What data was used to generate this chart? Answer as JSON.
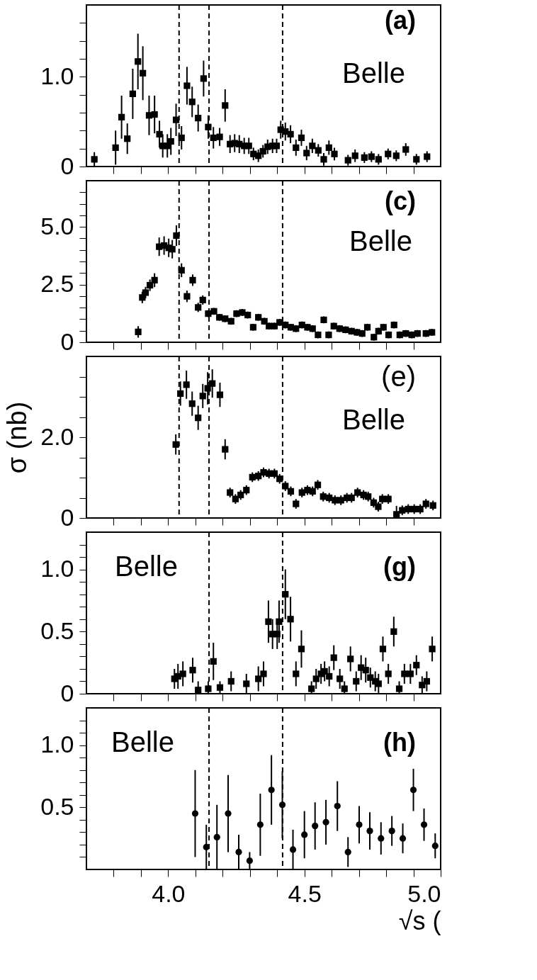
{
  "chart_data": [
    {
      "type": "scatter",
      "annotations": [
        "(a)",
        "Belle"
      ],
      "marker": "square",
      "tick_labels": "y",
      "grid": false,
      "xlim": [
        3.7,
        5.0
      ],
      "xticks": [
        {
          "value": 3.8,
          "label": null
        },
        {
          "value": 3.9,
          "label": null
        },
        {
          "value": 4.0,
          "label": null
        },
        {
          "value": 4.1,
          "label": null
        },
        {
          "value": 4.2,
          "label": null
        },
        {
          "value": 4.3,
          "label": null
        },
        {
          "value": 4.4,
          "label": null
        },
        {
          "value": 4.5,
          "label": null
        },
        {
          "value": 4.6,
          "label": null
        },
        {
          "value": 4.7,
          "label": null
        },
        {
          "value": 4.8,
          "label": null
        },
        {
          "value": 4.9,
          "label": null
        }
      ],
      "ylim": [
        0,
        1.8
      ],
      "yticks": [
        0,
        {
          "value": 0.2,
          "label": null
        },
        {
          "value": 0.4,
          "label": null
        },
        {
          "value": 0.6,
          "label": null
        },
        {
          "value": 0.8,
          "label": null
        },
        {
          "value": 1,
          "label": "1.0"
        },
        {
          "value": 1.2,
          "label": null
        },
        {
          "value": 1.4,
          "label": null
        },
        {
          "value": 1.6,
          "label": null
        }
      ],
      "ref_lines": [
        {
          "axis": "x",
          "value": 4.04,
          "line_style": "dashed",
          "color": "#000000"
        },
        {
          "axis": "x",
          "value": 4.15,
          "line_style": "dashed",
          "color": "#000000"
        },
        {
          "axis": "x",
          "value": 4.42,
          "line_style": "dashed",
          "color": "#000000"
        }
      ],
      "series": [
        {
          "color": "#000000",
          "x": [
            3.729,
            3.807,
            3.829,
            3.85,
            3.87,
            3.889,
            3.907,
            3.93,
            3.95,
            3.968,
            3.98,
            3.997,
            4.01,
            4.029,
            4.049,
            4.069,
            4.088,
            4.11,
            4.13,
            4.147,
            4.166,
            4.189,
            4.209,
            4.227,
            4.244,
            4.261,
            4.279,
            4.296,
            4.313,
            4.331,
            4.348,
            4.365,
            4.383,
            4.398,
            4.413,
            4.43,
            4.449,
            4.469,
            4.489,
            4.508,
            4.529,
            4.551,
            4.571,
            4.59,
            4.61,
            4.66,
            4.686,
            4.72,
            4.746,
            4.772,
            4.807,
            4.837,
            4.872,
            4.911,
            4.95
          ],
          "values": [
            0.08,
            0.21,
            0.55,
            0.31,
            0.81,
            1.17,
            1.04,
            0.57,
            0.58,
            0.36,
            0.23,
            0.23,
            0.28,
            0.52,
            0.32,
            0.9,
            0.72,
            0.54,
            0.98,
            0.44,
            0.32,
            0.33,
            0.68,
            0.25,
            0.26,
            0.25,
            0.23,
            0.23,
            0.14,
            0.12,
            0.17,
            0.22,
            0.23,
            0.23,
            0.41,
            0.39,
            0.36,
            0.21,
            0.32,
            0.15,
            0.23,
            0.18,
            0.08,
            0.21,
            0.14,
            0.07,
            0.12,
            0.1,
            0.11,
            0.08,
            0.14,
            0.12,
            0.19,
            0.08,
            0.11
          ],
          "errors": [
            0.08,
            0.19,
            0.24,
            0.17,
            0.28,
            0.31,
            0.3,
            0.22,
            0.21,
            0.15,
            0.13,
            0.13,
            0.15,
            0.18,
            0.13,
            0.21,
            0.17,
            0.15,
            0.2,
            0.13,
            0.12,
            0.1,
            0.18,
            0.1,
            0.1,
            0.1,
            0.09,
            0.09,
            0.07,
            0.07,
            0.07,
            0.08,
            0.08,
            0.08,
            0.1,
            0.1,
            0.1,
            0.09,
            0.09,
            0.08,
            0.08,
            0.07,
            0.07,
            0.08,
            0.07,
            0.06,
            0.07,
            0.06,
            0.06,
            0.06,
            0.06,
            0.06,
            0.07,
            0.06,
            0.06
          ]
        }
      ]
    },
    {
      "type": "scatter",
      "annotations": [
        "(c)",
        "Belle"
      ],
      "marker": "square",
      "tick_labels": "y",
      "grid": false,
      "xlim": [
        3.7,
        5.0
      ],
      "xticks": [
        {
          "value": 3.8,
          "label": null
        },
        {
          "value": 3.9,
          "label": null
        },
        {
          "value": 4.0,
          "label": null
        },
        {
          "value": 4.1,
          "label": null
        },
        {
          "value": 4.2,
          "label": null
        },
        {
          "value": 4.3,
          "label": null
        },
        {
          "value": 4.4,
          "label": null
        },
        {
          "value": 4.5,
          "label": null
        },
        {
          "value": 4.6,
          "label": null
        },
        {
          "value": 4.7,
          "label": null
        },
        {
          "value": 4.8,
          "label": null
        },
        {
          "value": 4.9,
          "label": null
        }
      ],
      "ylim": [
        0,
        7
      ],
      "yticks": [
        0,
        {
          "value": 0.5,
          "label": null
        },
        {
          "value": 1,
          "label": null
        },
        {
          "value": 1.5,
          "label": null
        },
        {
          "value": 2,
          "label": null
        },
        2.5,
        {
          "value": 3,
          "label": null
        },
        {
          "value": 3.5,
          "label": null
        },
        {
          "value": 4,
          "label": null
        },
        {
          "value": 4.5,
          "label": null
        },
        {
          "value": 5,
          "label": "5.0"
        },
        {
          "value": 5.5,
          "label": null
        },
        {
          "value": 6,
          "label": null
        },
        {
          "value": 6.5,
          "label": null
        }
      ],
      "ref_lines": [
        {
          "axis": "x",
          "value": 4.04,
          "line_style": "dashed",
          "color": "#000000"
        },
        {
          "axis": "x",
          "value": 4.15,
          "line_style": "dashed",
          "color": "#000000"
        },
        {
          "axis": "x",
          "value": 4.42,
          "line_style": "dashed",
          "color": "#000000"
        }
      ],
      "series": [
        {
          "color": "#000000",
          "x": [
            3.89,
            3.905,
            3.917,
            3.933,
            3.95,
            3.967,
            3.985,
            4.002,
            4.015,
            4.03,
            4.049,
            4.069,
            4.09,
            4.11,
            4.127,
            4.147,
            4.168,
            4.188,
            4.209,
            4.231,
            4.251,
            4.272,
            4.292,
            4.312,
            4.331,
            4.353,
            4.37,
            4.39,
            4.409,
            4.43,
            4.45,
            4.469,
            4.491,
            4.511,
            4.53,
            4.55,
            4.571,
            4.589,
            4.608,
            4.629,
            4.651,
            4.673,
            4.693,
            4.712,
            4.731,
            4.755,
            4.772,
            4.79,
            4.809,
            4.829,
            4.85,
            4.872,
            4.894,
            4.915,
            4.946,
            4.968
          ],
          "values": [
            0.45,
            1.94,
            2.15,
            2.47,
            2.69,
            4.14,
            4.19,
            4.09,
            4.03,
            4.62,
            3.12,
            1.99,
            2.69,
            1.51,
            1.83,
            1.24,
            1.34,
            1.08,
            1.02,
            0.91,
            1.24,
            1.29,
            1.18,
            0.65,
            1.08,
            0.91,
            0.7,
            0.7,
            0.86,
            0.75,
            0.65,
            0.59,
            0.75,
            0.65,
            0.59,
            0.32,
            0.97,
            0.32,
            0.7,
            0.59,
            0.54,
            0.48,
            0.43,
            0.38,
            0.65,
            0.22,
            0.48,
            0.65,
            0.32,
            0.75,
            0.32,
            0.38,
            0.32,
            0.38,
            0.38,
            0.43
          ],
          "errors": [
            0.25,
            0.25,
            0.25,
            0.25,
            0.3,
            0.4,
            0.4,
            0.4,
            0.4,
            0.45,
            0.3,
            0.25,
            0.25,
            0.2,
            0.2,
            0.15,
            0.15,
            0.15,
            0.15,
            0.15,
            0.15,
            0.15,
            0.15,
            0.15,
            0.15,
            0.15,
            0.15,
            0.15,
            0.15,
            0.15,
            0.15,
            0.15,
            0.15,
            0.15,
            0.15,
            0.15,
            0.15,
            0.15,
            0.15,
            0.15,
            0.15,
            0.15,
            0.15,
            0.15,
            0.15,
            0.15,
            0.15,
            0.15,
            0.15,
            0.15,
            0.15,
            0.15,
            0.15,
            0.15,
            0.15,
            0.15
          ]
        }
      ]
    },
    {
      "type": "scatter",
      "annotations": [
        "(e)",
        "Belle"
      ],
      "marker": "square",
      "tick_labels": "y",
      "grid": false,
      "ylabel": "σ (nb)",
      "xlim": [
        3.7,
        5.0
      ],
      "xticks": [
        {
          "value": 3.8,
          "label": null
        },
        {
          "value": 3.9,
          "label": null
        },
        {
          "value": 4.0,
          "label": null
        },
        {
          "value": 4.1,
          "label": null
        },
        {
          "value": 4.2,
          "label": null
        },
        {
          "value": 4.3,
          "label": null
        },
        {
          "value": 4.4,
          "label": null
        },
        {
          "value": 4.5,
          "label": null
        },
        {
          "value": 4.6,
          "label": null
        },
        {
          "value": 4.7,
          "label": null
        },
        {
          "value": 4.8,
          "label": null
        },
        {
          "value": 4.9,
          "label": null
        }
      ],
      "ylim": [
        0,
        4
      ],
      "yticks": [
        0,
        {
          "value": 0.5,
          "label": null
        },
        {
          "value": 1,
          "label": null
        },
        {
          "value": 1.5,
          "label": null
        },
        {
          "value": 2,
          "label": "2.0"
        },
        {
          "value": 2.5,
          "label": null
        },
        {
          "value": 3,
          "label": null
        },
        {
          "value": 3.5,
          "label": null
        }
      ],
      "ref_lines": [
        {
          "axis": "x",
          "value": 4.04,
          "line_style": "dashed",
          "color": "#000000"
        },
        {
          "axis": "x",
          "value": 4.15,
          "line_style": "dashed",
          "color": "#000000"
        },
        {
          "axis": "x",
          "value": 4.42,
          "line_style": "dashed",
          "color": "#000000"
        }
      ],
      "series": [
        {
          "color": "#000000",
          "x": [
            4.028,
            4.045,
            4.067,
            4.088,
            4.11,
            4.127,
            4.145,
            4.162,
            4.19,
            4.209,
            4.227,
            4.247,
            4.266,
            4.287,
            4.309,
            4.331,
            4.35,
            4.37,
            4.39,
            4.409,
            4.43,
            4.45,
            4.469,
            4.491,
            4.511,
            4.53,
            4.549,
            4.569,
            4.591,
            4.612,
            4.634,
            4.656,
            4.673,
            4.695,
            4.717,
            4.734,
            4.754,
            4.771,
            4.786,
            4.808,
            4.838,
            4.859,
            4.881,
            4.903,
            4.925,
            4.946,
            4.972
          ],
          "values": [
            1.82,
            3.08,
            3.3,
            2.83,
            2.48,
            3.02,
            3.21,
            3.33,
            3.05,
            1.7,
            0.63,
            0.47,
            0.57,
            0.69,
            1.01,
            1.04,
            1.13,
            1.1,
            1.1,
            0.97,
            0.79,
            0.66,
            0.35,
            0.63,
            0.69,
            0.66,
            0.82,
            0.53,
            0.5,
            0.44,
            0.44,
            0.5,
            0.5,
            0.63,
            0.57,
            0.53,
            0.38,
            0.28,
            0.47,
            0.47,
            0.09,
            0.19,
            0.22,
            0.22,
            0.22,
            0.35,
            0.31
          ],
          "errors": [
            0.25,
            0.3,
            0.35,
            0.3,
            0.3,
            0.3,
            0.4,
            0.35,
            0.3,
            0.25,
            0.12,
            0.12,
            0.12,
            0.12,
            0.12,
            0.12,
            0.12,
            0.12,
            0.12,
            0.12,
            0.12,
            0.12,
            0.12,
            0.12,
            0.12,
            0.12,
            0.12,
            0.12,
            0.12,
            0.12,
            0.12,
            0.12,
            0.12,
            0.12,
            0.12,
            0.12,
            0.12,
            0.12,
            0.12,
            0.12,
            [
              0,
              0.3
            ],
            0.12,
            0.12,
            0.12,
            0.12,
            0.12,
            0.12
          ]
        }
      ]
    },
    {
      "type": "scatter",
      "annotations": [
        "Belle",
        "(g)"
      ],
      "marker": "square",
      "tick_labels": "y",
      "grid": false,
      "xlim": [
        3.7,
        5.0
      ],
      "xticks": [
        {
          "value": 3.8,
          "label": null
        },
        {
          "value": 3.9,
          "label": null
        },
        {
          "value": 4.0,
          "label": null
        },
        {
          "value": 4.1,
          "label": null
        },
        {
          "value": 4.2,
          "label": null
        },
        {
          "value": 4.3,
          "label": null
        },
        {
          "value": 4.4,
          "label": null
        },
        {
          "value": 4.5,
          "label": null
        },
        {
          "value": 4.6,
          "label": null
        },
        {
          "value": 4.7,
          "label": null
        },
        {
          "value": 4.8,
          "label": null
        },
        {
          "value": 4.9,
          "label": null
        }
      ],
      "ylim": [
        0,
        1.3
      ],
      "yticks": [
        0,
        {
          "value": 0.1,
          "label": null
        },
        {
          "value": 0.2,
          "label": null
        },
        {
          "value": 0.3,
          "label": null
        },
        {
          "value": 0.4,
          "label": null
        },
        0.5,
        {
          "value": 0.6,
          "label": null
        },
        {
          "value": 0.7,
          "label": null
        },
        {
          "value": 0.8,
          "label": null
        },
        {
          "value": 0.9,
          "label": null
        },
        {
          "value": 1,
          "label": "1.0"
        },
        {
          "value": 1.1,
          "label": null
        },
        {
          "value": 1.2,
          "label": null
        }
      ],
      "ref_lines": [
        {
          "axis": "x",
          "value": 4.15,
          "line_style": "dashed",
          "color": "#000000"
        },
        {
          "axis": "x",
          "value": 4.42,
          "line_style": "dashed",
          "color": "#000000"
        }
      ],
      "series": [
        {
          "color": "#000000",
          "x": [
            4.023,
            4.036,
            4.054,
            4.09,
            4.11,
            4.147,
            4.166,
            4.19,
            4.231,
            4.287,
            4.331,
            4.35,
            4.368,
            4.383,
            4.4,
            4.407,
            4.43,
            4.449,
            4.469,
            4.489,
            4.526,
            4.543,
            4.561,
            4.574,
            4.591,
            4.608,
            4.63,
            4.647,
            4.669,
            4.69,
            4.708,
            4.725,
            4.742,
            4.76,
            4.772,
            4.788,
            4.808,
            4.828,
            4.848,
            4.867,
            4.889,
            4.911,
            4.932,
            4.949,
            4.969
          ],
          "values": [
            0.12,
            0.14,
            0.16,
            0.19,
            0.03,
            0.04,
            0.26,
            0.05,
            0.1,
            0.08,
            0.12,
            0.16,
            0.58,
            0.48,
            0.48,
            0.58,
            0.8,
            0.6,
            0.16,
            0.36,
            0.04,
            0.12,
            0.16,
            0.18,
            0.14,
            0.29,
            0.12,
            0.04,
            0.28,
            0.1,
            0.21,
            0.19,
            0.13,
            0.1,
            0.08,
            0.36,
            0.16,
            0.5,
            0.04,
            0.16,
            0.16,
            0.23,
            0.07,
            0.1,
            0.36
          ],
          "errors": [
            0.08,
            0.1,
            0.1,
            0.1,
            [
              0,
              0.1
            ],
            [
              0,
              0.1
            ],
            0.15,
            0.05,
            0.08,
            0.08,
            0.1,
            0.1,
            0.17,
            0.12,
            0.12,
            0.17,
            0.2,
            0.18,
            0.1,
            0.15,
            [
              0,
              0.1
            ],
            0.08,
            0.08,
            0.08,
            0.08,
            0.1,
            0.08,
            [
              0,
              0.1
            ],
            0.1,
            0.08,
            0.1,
            0.1,
            0.08,
            0.08,
            0.08,
            0.1,
            0.08,
            0.12,
            [
              0,
              0.1
            ],
            0.08,
            0.08,
            0.08,
            0.07,
            0.08,
            0.1
          ]
        }
      ]
    },
    {
      "type": "scatter",
      "annotations": [
        "Belle",
        "(h)"
      ],
      "marker": "circle",
      "xlabel": "√s (",
      "grid": false,
      "xlim": [
        3.7,
        5.0
      ],
      "xticks": [
        {
          "value": 3.8,
          "label": null
        },
        {
          "value": 3.9,
          "label": null
        },
        {
          "value": 4.0,
          "label": "4.0"
        },
        {
          "value": 4.1,
          "label": null
        },
        {
          "value": 4.2,
          "label": null
        },
        {
          "value": 4.3,
          "label": null
        },
        {
          "value": 4.4,
          "label": null
        },
        {
          "value": 4.5,
          "label": "4.5"
        },
        {
          "value": 4.6,
          "label": null
        },
        {
          "value": 4.7,
          "label": null
        },
        {
          "value": 4.8,
          "label": null
        },
        {
          "value": 4.9,
          "label": null
        },
        {
          "value": 5.0,
          "label": "5.0"
        }
      ],
      "ylim": [
        0,
        1.3
      ],
      "yticks": [
        {
          "value": 0.1,
          "label": null
        },
        {
          "value": 0.2,
          "label": null
        },
        {
          "value": 0.3,
          "label": null
        },
        {
          "value": 0.4,
          "label": null
        },
        0.5,
        {
          "value": 0.6,
          "label": null
        },
        {
          "value": 0.7,
          "label": null
        },
        {
          "value": 0.8,
          "label": null
        },
        {
          "value": 0.9,
          "label": null
        },
        {
          "value": 1,
          "label": "1.0"
        },
        {
          "value": 1.1,
          "label": null
        },
        {
          "value": 1.2,
          "label": null
        }
      ],
      "ref_lines": [
        {
          "axis": "x",
          "value": 4.15,
          "line_style": "dashed",
          "color": "#000000"
        },
        {
          "axis": "x",
          "value": 4.42,
          "line_style": "dashed",
          "color": "#000000"
        }
      ],
      "series": [
        {
          "color": "#000000",
          "x": [
            4.099,
            4.14,
            4.179,
            4.22,
            4.259,
            4.299,
            4.338,
            4.379,
            4.419,
            4.458,
            4.5,
            4.539,
            4.579,
            4.621,
            4.66,
            4.701,
            4.74,
            4.781,
            4.821,
            4.861,
            4.9,
            4.939,
            4.98
          ],
          "values": [
            0.45,
            0.18,
            0.26,
            0.45,
            0.14,
            0.07,
            0.36,
            0.64,
            0.52,
            0.16,
            0.28,
            0.35,
            0.38,
            0.51,
            0.14,
            0.36,
            0.31,
            0.25,
            0.31,
            0.25,
            0.64,
            0.36,
            0.19
          ],
          "errors": [
            0.35,
            0.18,
            0.26,
            0.31,
            0.14,
            0.07,
            0.25,
            0.28,
            0.27,
            0.16,
            0.19,
            0.19,
            0.18,
            0.2,
            0.12,
            0.15,
            0.15,
            0.13,
            0.12,
            0.12,
            0.17,
            0.13,
            0.1
          ]
        }
      ]
    }
  ]
}
